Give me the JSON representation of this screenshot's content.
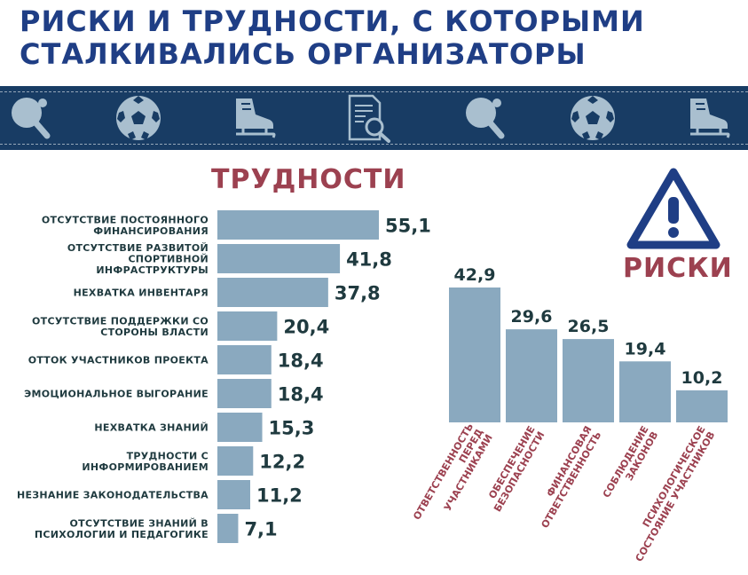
{
  "title_lines": [
    "РИСКИ И ТРУДНОСТИ, С КОТОРЫМИ",
    "СТАЛКИВАЛИСЬ ОРГАНИЗАТОРЫ"
  ],
  "banner_icons": [
    "ping-pong-paddle-icon",
    "soccer-ball-icon",
    "ice-skate-icon",
    "document-search-icon",
    "ping-pong-paddle-icon",
    "soccer-ball-icon",
    "ice-skate-icon"
  ],
  "colors": {
    "title": "#1f3e85",
    "banner": "#183c64",
    "bar": "#8aa9bf",
    "value": "#1f3a3f",
    "heading": "#9c4150",
    "warning": "#1f3e85"
  },
  "chart_data": [
    {
      "type": "bar",
      "orientation": "horizontal",
      "title": "ТРУДНОСТИ",
      "categories": [
        [
          "ОТСУТСТВИЕ ПОСТОЯННОГО",
          "ФИНАНСИРОВАНИЯ"
        ],
        [
          "ОТСУТСТВИЕ РАЗВИТОЙ",
          "СПОРТИВНОЙ",
          "ИНФРАСТРУКТУРЫ"
        ],
        [
          "НЕХВАТКА ИНВЕНТАРЯ"
        ],
        [
          "ОТСУТСТВИЕ ПОДДЕРЖКИ СО",
          "СТОРОНЫ ВЛАСТИ"
        ],
        [
          "ОТТОК УЧАСТНИКОВ ПРОЕКТА"
        ],
        [
          "ЭМОЦИОНАЛЬНОЕ ВЫГОРАНИЕ"
        ],
        [
          "НЕХВАТКА ЗНАНИЙ"
        ],
        [
          "ТРУДНОСТИ С",
          "ИНФОРМИРОВАНИЕМ"
        ],
        [
          "НЕЗНАНИЕ ЗАКОНОДАТЕЛЬСТВА"
        ],
        [
          "ОТСУТСТВИЕ ЗНАНИЙ В",
          "ПСИХОЛОГИИ И ПЕДАГОГИКЕ"
        ]
      ],
      "values": [
        55.1,
        41.8,
        37.8,
        20.4,
        18.4,
        18.4,
        15.3,
        12.2,
        11.2,
        7.1
      ],
      "labels": [
        "55,1",
        "41,8",
        "37,8",
        "20,4",
        "18,4",
        "18,4",
        "15,3",
        "12,2",
        "11,2",
        "7,1"
      ]
    },
    {
      "type": "bar",
      "orientation": "vertical",
      "title": "РИСКИ",
      "categories": [
        [
          "ОТВЕТСТВЕННОСТЬ",
          "ПЕРЕД",
          "УЧАСТНИКАМИ"
        ],
        [
          "ОБЕСПЕЧЕНИЕ",
          "БЕЗОПАСНОСТИ"
        ],
        [
          "ФИНАНСОВАЯ",
          "ОТВЕТСТВЕННОСТЬ"
        ],
        [
          "СОБЛЮДЕНИЕ",
          "ЗАКОНОВ"
        ],
        [
          "ПСИХОЛОГИЧЕСКОЕ",
          "СОСТОЯНИЕ УЧАСТНИКОВ"
        ]
      ],
      "values": [
        42.9,
        29.6,
        26.5,
        19.4,
        10.2
      ],
      "labels": [
        "42,9",
        "29,6",
        "26,5",
        "19,4",
        "10,2"
      ]
    }
  ]
}
